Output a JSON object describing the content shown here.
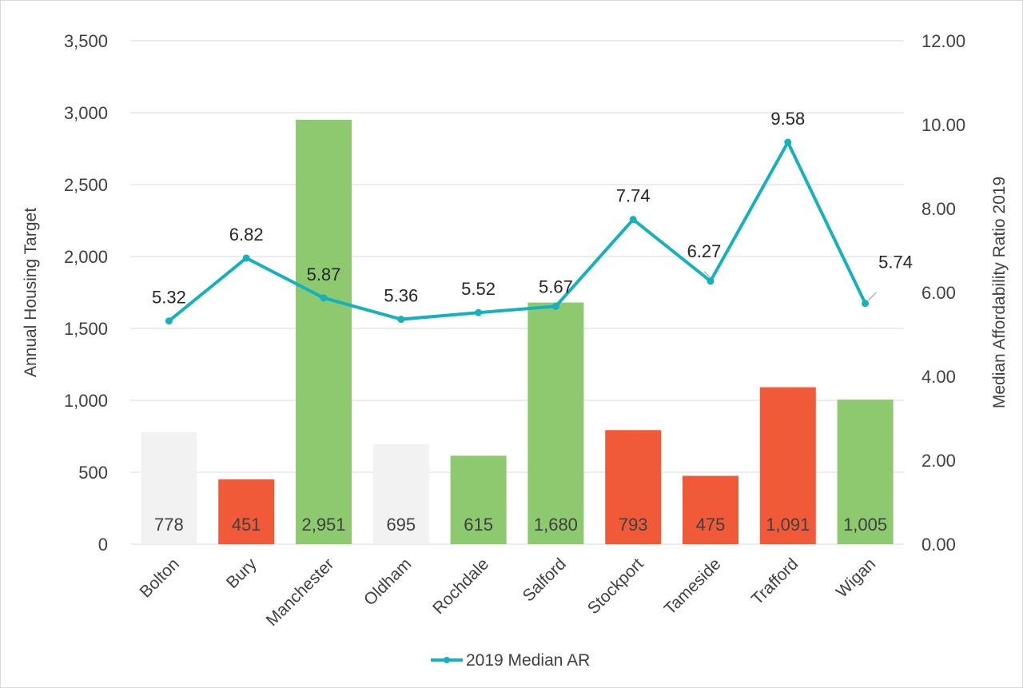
{
  "chart_data": {
    "type": "bar",
    "categories": [
      "Bolton",
      "Bury",
      "Manchester",
      "Oldham",
      "Rochdale",
      "Salford",
      "Stockport",
      "Tameside",
      "Trafford",
      "Wigan"
    ],
    "series": [
      {
        "values": [
          778,
          451,
          2951,
          695,
          615,
          1680,
          793,
          475,
          1091,
          1005
        ],
        "labels": [
          "778",
          "451",
          "2,951",
          "695",
          "615",
          "1,680",
          "793",
          "475",
          "1,091",
          "1,005"
        ],
        "colors": [
          "#f2f2f2",
          "#f05a38",
          "#8dc96f",
          "#f2f2f2",
          "#8dc96f",
          "#8dc96f",
          "#f05a38",
          "#f05a38",
          "#f05a38",
          "#8dc96f"
        ],
        "axis": "left"
      },
      {
        "name": "2019 Median AR",
        "type": "line",
        "values": [
          5.32,
          6.82,
          5.87,
          5.36,
          5.52,
          5.67,
          7.74,
          6.27,
          9.58,
          5.74
        ],
        "labels": [
          "5.32",
          "6.82",
          "5.87",
          "5.36",
          "5.52",
          "5.67",
          "7.74",
          "6.27",
          "9.58",
          "5.74"
        ],
        "color": "#17b0bd",
        "axis": "right"
      }
    ],
    "ylabel": "Annual Housing Target",
    "y2label": "Median Affordability Ratio 2019",
    "ylim": [
      0,
      3500
    ],
    "y2lim": [
      0,
      12
    ],
    "yticks": [
      "0",
      "500",
      "1,000",
      "1,500",
      "2,000",
      "2,500",
      "3,000",
      "3,500"
    ],
    "y2ticks": [
      "0.00",
      "2.00",
      "4.00",
      "6.00",
      "8.00",
      "10.00",
      "12.00"
    ],
    "grid": true,
    "legend": "bottom"
  }
}
